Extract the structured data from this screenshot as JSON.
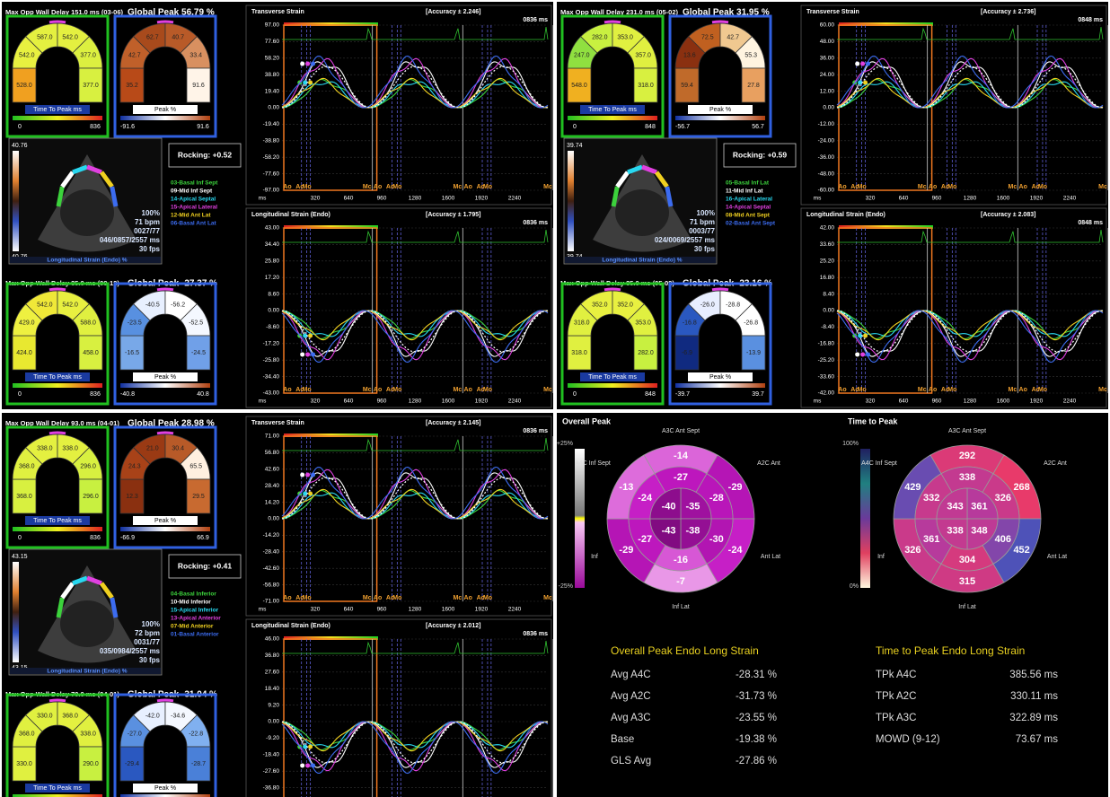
{
  "strain_panels": [
    {
      "header": "Max Opp Wall Delay 151.0 ms (03-06)",
      "global_peak": "Global Peak 56.79 %",
      "arches": [
        {
          "label": "Time To Peak ms",
          "scale": [
            "0",
            "836"
          ],
          "segments": [
            "528.0",
            "542.0",
            "587.0",
            "542.0",
            "377.0",
            "377.0"
          ],
          "colors": [
            "#f0a020",
            "#e8f040",
            "#e4f040",
            "#e4f040",
            "#dcf040",
            "#d8f040"
          ]
        },
        {
          "label": "Peak %",
          "scale": [
            "-91.6",
            "91.6"
          ],
          "segments": [
            "35.2",
            "42.7",
            "62.7",
            "40.7",
            "33.4",
            "91.6"
          ],
          "colors": [
            "#b84a18",
            "#c0602a",
            "#a84a1c",
            "#b85a28",
            "#d89060",
            "#fff4e8"
          ]
        }
      ],
      "rocking": "Rocking: +0.52",
      "legend": [
        {
          "name": "03-Basal Inf Sept",
          "color": "#3cd23c"
        },
        {
          "name": "09-Mid Inf Sept",
          "color": "#ffffff"
        },
        {
          "name": "14-Apical Septal",
          "color": "#28d8f0"
        },
        {
          "name": "15-Apical Lateral",
          "color": "#e040e0"
        },
        {
          "name": "12-Mid Ant Lat",
          "color": "#f0d020"
        },
        {
          "name": "06-Basal Ant Lat",
          "color": "#3c6cf0"
        }
      ],
      "image": {
        "scale": [
          "40.76",
          "40.76"
        ],
        "stats": [
          "100%",
          "71 bpm",
          "0027/77",
          "046/0857/2557 ms",
          "30 fps"
        ],
        "caption": "Longitudinal Strain (Endo) %"
      },
      "header2": "Max Opp Wall Delay 35.0 ms (09-12)",
      "global_peak2": "Global Peak -27.37 %",
      "arches2": [
        {
          "label": "Time To Peak ms",
          "scale": [
            "0",
            "836"
          ],
          "segments": [
            "424.0",
            "429.0",
            "542.0",
            "542.0",
            "588.0",
            "458.0"
          ],
          "colors": [
            "#e8e830",
            "#eef040",
            "#f0e838",
            "#e8f040",
            "#e0f040",
            "#d8f040"
          ]
        },
        {
          "label": "Peak %",
          "scale": [
            "-40.8",
            "40.8"
          ],
          "segments": [
            "-16.5",
            "-23.5",
            "-40.5",
            "-56.2",
            "-52.5",
            "-24.5"
          ],
          "colors": [
            "#78a8e8",
            "#5890e0",
            "#e8f0ff",
            "#ffffff",
            "#f4f8ff",
            "#70a0e8"
          ]
        }
      ],
      "graphs": [
        {
          "title": "Transverse Strain",
          "accuracy": "[Accuracy ± 2.246]",
          "time": "0836 ms",
          "yticks": [
            "97.00",
            "77.60",
            "58.20",
            "38.80",
            "19.40",
            "0.00",
            "-19.40",
            "-38.80",
            "-58.20",
            "-77.60",
            "-97.00"
          ],
          "xticks": [
            "ms",
            "320",
            "640",
            "960",
            "1280",
            "1600",
            "1920",
            "2240"
          ],
          "events": [
            "Ao",
            "Ac",
            "Mo",
            "Mc"
          ]
        },
        {
          "title": "Longitudinal Strain (Endo)",
          "accuracy": "[Accuracy ± 1.795]",
          "time": "0836 ms",
          "yticks": [
            "43.00",
            "34.40",
            "25.80",
            "17.20",
            "8.60",
            "0.00",
            "-8.60",
            "-17.20",
            "-25.80",
            "-34.40",
            "-43.00"
          ],
          "xticks": [
            "ms",
            "320",
            "640",
            "960",
            "1280",
            "1600",
            "1920",
            "2240"
          ],
          "events": [
            "Ao",
            "Ac",
            "Mo",
            "Mc"
          ]
        }
      ]
    },
    {
      "header": "Max Opp Wall Delay 231.0 ms (05-02)",
      "global_peak": "Global Peak 31.95 %",
      "arches": [
        {
          "label": "Time To Peak ms",
          "scale": [
            "0",
            "848"
          ],
          "segments": [
            "548.0",
            "247.0",
            "282.0",
            "353.0",
            "357.0",
            "318.0"
          ],
          "colors": [
            "#f0b020",
            "#90e040",
            "#c8f040",
            "#e0f040",
            "#e0f040",
            "#d8f040"
          ]
        },
        {
          "label": "Peak %",
          "scale": [
            "-56.7",
            "56.7"
          ],
          "segments": [
            "59.4",
            "13.6",
            "72.5",
            "42.7",
            "55.3",
            "27.8"
          ],
          "colors": [
            "#c06a2a",
            "#8a3010",
            "#c06020",
            "#f0c890",
            "#fff4e0",
            "#e8a060"
          ]
        }
      ],
      "rocking": "Rocking: +0.59",
      "legend": [
        {
          "name": "05-Basal Inf Lat",
          "color": "#3cd23c"
        },
        {
          "name": "11-Mid Inf Lat",
          "color": "#ffffff"
        },
        {
          "name": "16-Apical Lateral",
          "color": "#28d8f0"
        },
        {
          "name": "14-Apical Septal",
          "color": "#e040e0"
        },
        {
          "name": "08-Mid Ant Sept",
          "color": "#f0d020"
        },
        {
          "name": "02-Basal Ant Sept",
          "color": "#3c6cf0"
        }
      ],
      "image": {
        "scale": [
          "39.74",
          "39.74"
        ],
        "stats": [
          "100%",
          "71 bpm",
          "0003/77",
          "024/0069/2557 ms",
          "30 fps"
        ],
        "caption": "Longitudinal Strain (Endo) %"
      },
      "header2": "Max Opp Wall Delay 35.0 ms (05-02)",
      "global_peak2": "Global Peak -23.16 %",
      "arches2": [
        {
          "label": "Time To Peak ms",
          "scale": [
            "0",
            "848"
          ],
          "segments": [
            "318.0",
            "318.0",
            "352.0",
            "352.0",
            "353.0",
            "282.0"
          ],
          "colors": [
            "#e0f040",
            "#e0f040",
            "#e8f040",
            "#e8f040",
            "#e0f040",
            "#c8f040"
          ]
        },
        {
          "label": "Peak %",
          "scale": [
            "-39.7",
            "39.7"
          ],
          "segments": [
            "-6.9",
            "-16.8",
            "-26.0",
            "-28.8",
            "-26.8",
            "-13.9"
          ],
          "colors": [
            "#102a80",
            "#2a58c0",
            "#e8eeff",
            "#ffffff",
            "#ffffff",
            "#5a90e0"
          ]
        }
      ],
      "graphs": [
        {
          "title": "Transverse Strain",
          "accuracy": "[Accuracy ± 2.736]",
          "time": "0848 ms",
          "yticks": [
            "60.00",
            "48.00",
            "36.00",
            "24.00",
            "12.00",
            "0.00",
            "-12.00",
            "-24.00",
            "-36.00",
            "-48.00",
            "-60.00"
          ],
          "xticks": [
            "ms",
            "320",
            "640",
            "960",
            "1280",
            "1600",
            "1920",
            "2240"
          ],
          "events": [
            "Ao",
            "Ac",
            "Mo",
            "Mc"
          ]
        },
        {
          "title": "Longitudinal Strain (Endo)",
          "accuracy": "[Accuracy ± 2.083]",
          "time": "0848 ms",
          "yticks": [
            "42.00",
            "33.60",
            "25.20",
            "16.80",
            "8.40",
            "0.00",
            "-8.40",
            "-16.80",
            "-25.20",
            "-33.60",
            "-42.00"
          ],
          "xticks": [
            "ms",
            "320",
            "640",
            "960",
            "1280",
            "1600",
            "1920",
            "2240"
          ],
          "events": [
            "Ao",
            "Ac",
            "Mo",
            "Mc"
          ]
        }
      ]
    },
    {
      "header": "Max Opp Wall Delay 93.0 ms (04-01)",
      "global_peak": "Global Peak 28.98 %",
      "arches": [
        {
          "label": "Time To Peak ms",
          "scale": [
            "0",
            "836"
          ],
          "segments": [
            "368.0",
            "368.0",
            "338.0",
            "338.0",
            "296.0",
            "296.0"
          ],
          "colors": [
            "#d8f040",
            "#e0f040",
            "#e4f040",
            "#e4f040",
            "#d8f040",
            "#c8f040"
          ]
        },
        {
          "label": "Peak %",
          "scale": [
            "-66.9",
            "66.9"
          ],
          "segments": [
            "12.3",
            "24.3",
            "21.0",
            "30.4",
            "65.5",
            "29.5"
          ],
          "colors": [
            "#8a3010",
            "#a84218",
            "#9a3a14",
            "#b85a28",
            "#fff0e0",
            "#c86a30"
          ]
        }
      ],
      "rocking": "Rocking: +0.41",
      "legend": [
        {
          "name": "04-Basal Inferior",
          "color": "#3cd23c"
        },
        {
          "name": "10-Mid Inferior",
          "color": "#ffffff"
        },
        {
          "name": "15-Apical Inferior",
          "color": "#28d8f0"
        },
        {
          "name": "13-Apical Anterior",
          "color": "#e040e0"
        },
        {
          "name": "07-Mid Anterior",
          "color": "#f0d020"
        },
        {
          "name": "01-Basal Anterior",
          "color": "#3c6cf0"
        }
      ],
      "image": {
        "scale": [
          "43.15",
          "43.15"
        ],
        "stats": [
          "100%",
          "72 bpm",
          "0031/77",
          "035/0984/2557 ms",
          "30 fps"
        ],
        "caption": "Longitudinal Strain (Endo) %"
      },
      "header2": "Max Opp Wall Delay 70.0 ms (04-01)",
      "global_peak2": "Global Peak -31.04 %",
      "arches2": [
        {
          "label": "Time To Peak ms",
          "segments": [
            "330.0",
            "368.0",
            "330.0",
            "368.0",
            "338.0",
            "290.0"
          ],
          "colors": [
            "#e0f040",
            "#e0f040",
            "#e0f040",
            "#e4f040",
            "#e0f040",
            "#c8f040"
          ]
        },
        {
          "label": "Peak %",
          "segments": [
            "-29.4",
            "-27.0",
            "-42.0",
            "-34.6",
            "-22.8",
            "-28.7"
          ],
          "colors": [
            "#2a58c0",
            "#5a90e0",
            "#e8f0ff",
            "#f4f8ff",
            "#80b0f0",
            "#4a80d8"
          ]
        }
      ],
      "graphs": [
        {
          "title": "Transverse Strain",
          "accuracy": "[Accuracy ± 2.145]",
          "time": "0836 ms",
          "yticks": [
            "71.00",
            "56.80",
            "42.60",
            "28.40",
            "14.20",
            "0.00",
            "-14.20",
            "-28.40",
            "-42.60",
            "-56.80",
            "-71.00"
          ],
          "xticks": [
            "ms",
            "320",
            "640",
            "960",
            "1280",
            "1600",
            "1920",
            "2240"
          ],
          "events": [
            "Ao",
            "Ac",
            "Mo",
            "Mc"
          ]
        },
        {
          "title": "Longitudinal Strain (Endo)",
          "accuracy": "[Accuracy ± 2.012]",
          "time": "0836 ms",
          "yticks": [
            "46.00",
            "36.80",
            "27.60",
            "18.40",
            "9.20",
            "0.00",
            "-9.20",
            "-18.40",
            "-27.60",
            "-36.80"
          ],
          "events": [
            "Ao",
            "Ac",
            "Mo",
            "Mc"
          ]
        }
      ]
    }
  ],
  "summary": {
    "peak": {
      "title": "Overall Peak",
      "scale": [
        "+25%",
        "-25%"
      ],
      "labels": [
        "A3C Ant Sept",
        "A2C Ant",
        "Ant Lat",
        "Inf Lat",
        "Inf",
        "A4C Inf Sept"
      ],
      "outer": [
        -14,
        -29,
        -24,
        -7,
        -29,
        -13
      ],
      "middle": [
        -27,
        -28,
        -30,
        -16,
        -27,
        -24
      ],
      "apex": [
        -35,
        -38,
        -43,
        -40
      ]
    },
    "ttp": {
      "title": "Time to Peak",
      "scale": [
        "100%",
        "0%"
      ],
      "labels": [
        "A3C Ant Sept",
        "A2C Ant",
        "Ant Lat",
        "Inf Lat",
        "Inf",
        "A4C Inf Sept"
      ],
      "outer": [
        292,
        268,
        452,
        315,
        326,
        429
      ],
      "middle": [
        338,
        326,
        406,
        304,
        361,
        332
      ],
      "apex": [
        361,
        348,
        338,
        343
      ]
    },
    "tables": [
      {
        "title": "Overall Peak Endo Long Strain",
        "rows": [
          [
            "Avg A4C",
            "-28.31 %"
          ],
          [
            "Avg A2C",
            "-31.73 %"
          ],
          [
            "Avg A3C",
            "-23.55 %"
          ],
          [
            "Base",
            "-19.38 %"
          ],
          [
            "GLS Avg",
            "-27.86 %"
          ]
        ]
      },
      {
        "title": "Time to Peak Endo Long Strain",
        "rows": [
          [
            "TPk A4C",
            "385.56 ms"
          ],
          [
            "TPk A2C",
            "330.11 ms"
          ],
          [
            "TPk A3C",
            "322.89 ms"
          ],
          [
            "MOWD (9-12)",
            "73.67 ms"
          ]
        ]
      }
    ]
  }
}
